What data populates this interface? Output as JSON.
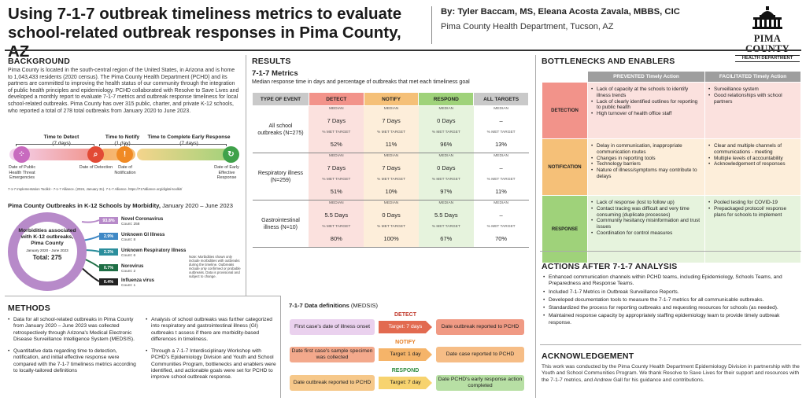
{
  "header": {
    "title": "Using 7-1-7 outbreak timeliness metrics to evaluate school-related outbreak responses in Pima County, AZ",
    "authors": "By: Tyler Baccam, MS, Eleana Acosta Zavala, MBBS, CIC",
    "affiliation": "Pima County Health Department, Tucson, AZ",
    "logo_line1": "PIMA COUNTY",
    "logo_line2": "HEALTH DEPARTMENT"
  },
  "background": {
    "heading": "BACKGROUND",
    "text": "Pima County is located in the south-central region of the United States, in Arizona and is home to 1,043,433 residents (2020 census). The Pima County Health Department (PCHD) and its partners are committed to improving the health status of our community through the integration of public health principles and epidemiology. PCHD collaborated with Resolve to Save Lives and developed a monthly report to evaluate 7-1-7 metrics and outbreak response timeliness for local school-related outbreaks. Pima County has over 315 public, charter, and private K-12 schools, who reported a total of 278 total outbreaks from January 2020 to June 2023."
  },
  "timeline": {
    "detect": "Time to Detect",
    "detect_days": "(7 days)",
    "notify": "Time to Notify",
    "notify_days": "(1 day)",
    "respond": "Time to Complete Early Response",
    "respond_days": "(7 days)",
    "lbl1": "Date of Public Health Threat Emergencies",
    "lbl2": "Date of Detection",
    "lbl3": "Date of Notification",
    "lbl4": "Date of Early Effective Response",
    "source": "7-1-7 Implementation Toolkit - 7-1-7 Alliance. (2024, January 31). 7-1-7 Alliance. https://717alliance.org/digital-toolkit/"
  },
  "morbidity": {
    "heading": "Pima County Outbreaks in K-12 Schools by Morbidity,",
    "period": " January 2020 – June 2023",
    "center_title": "Morbidities associated with K-12 outbreaks, Pima County",
    "center_range": "January 2020 - June 2023",
    "center_total": "Total: 275",
    "note": "Note: Morbidities shown only include morbidities with outbreaks during the timeline. Outbreaks include only confirmed or probable outbreaks. Data is provisional and subject to change.",
    "items": [
      {
        "pct": "93.8%",
        "name": "Novel Coronavirus",
        "count": "Count: 258",
        "color": "#b78ac9"
      },
      {
        "pct": "2.9%",
        "name": "Unknown GI Illness",
        "count": "Count: 8",
        "color": "#3f88c5"
      },
      {
        "pct": "2.2%",
        "name": "Unknown Respiratory Illness",
        "count": "Count: 6",
        "color": "#2b8e9c"
      },
      {
        "pct": "0.7%",
        "name": "Norovirus",
        "count": "Count: 2",
        "color": "#1e6e45"
      },
      {
        "pct": "0.4%",
        "name": "Influenza virus",
        "count": "Count: 1",
        "color": "#222222"
      }
    ]
  },
  "methods": {
    "heading": "METHODS",
    "left": [
      "Data for all school-related outbreaks in Pima County from January 2020 – June 2023 was collected retrospectively through Arizona's Medical Electronic Disease Surveillance Intelligence System (MEDSIS).",
      "Quantitative data regarding time to detection, notification, and initial effective response were compared with the 7-1-7 timeliness metrics according to locally-tailored definitions"
    ],
    "right": [
      "Analysis of school outbreaks was further categorized into respiratory and gastrointestinal illness (GI) outbreaks t assess if there are morbidity-based differences in timeliness.",
      "Through a 7-1-7 Interdisciplinary Workshop with PCHD's Epidemiology Division and Youth and School Communities Program, bottlenecks and enablers were identified, and actionable goals were set for PCHD to improve school outbreak response."
    ]
  },
  "results": {
    "heading": "RESULTS",
    "sub": "7-1-7 Metrics",
    "desc": "Median response time in days and percentage of outbreaks that met each timeliness goal",
    "cols": [
      "TYPE OF EVENT",
      "DETECT",
      "NOTIFY",
      "RESPOND",
      "ALL TARGETS"
    ],
    "median_lbl": "MEDIAN",
    "met_lbl": "% MET TARGET",
    "rows": [
      {
        "event": "All school outbreaks (N=275)",
        "median": [
          "7 Days",
          "7 Days",
          "0 Days",
          "–"
        ],
        "met": [
          "52%",
          "11%",
          "96%",
          "13%"
        ]
      },
      {
        "event": "Respiratory illness (N=259)",
        "median": [
          "7 Days",
          "7 Days",
          "0 Days",
          "–"
        ],
        "met": [
          "51%",
          "10%",
          "97%",
          "11%"
        ]
      },
      {
        "event": "Gastrointestinal illness (N=10)",
        "median": [
          "5.5 Days",
          "0 Days",
          "5.5 Days",
          "–"
        ],
        "met": [
          "80%",
          "100%",
          "67%",
          "70%"
        ]
      }
    ]
  },
  "definitions": {
    "heading": "7-1-7 Data definitions",
    "source": " (MEDSIS)",
    "detect": "DETECT",
    "notify": "NOTIFY",
    "respond": "RESPOND",
    "detect_target": "Target: 7 days",
    "notify_target": "Target: 1 day",
    "respond_target": "Target: 7 day",
    "detect_from": "First case's date of illness onset",
    "detect_to": "Date outbreak reported to PCHD",
    "notify_from": "Date first case's sample specimen was collected",
    "notify_to": "Date case reported to PCHD",
    "respond_from": "Date outbreak reported to PCHD",
    "respond_to": "Date PCHD's early response action completed"
  },
  "bottlenecks": {
    "heading": "BOTTLENECKS AND ENABLERS",
    "col_prevented": "PREVENTED Timely Action",
    "col_facilitated": "FACILITATED Timely Action",
    "rows": [
      {
        "label": "DETECTION",
        "prevented": [
          "Lack of capacity at the schools to identify illness trends",
          "Lack of clearly identified outlines for reporting to public health",
          "High turnover of health office staff"
        ],
        "facilitated": [
          "Surveillance system",
          "Good relationships with school partners"
        ]
      },
      {
        "label": "NOTIFICATION",
        "prevented": [
          "Delay in communication, inappropriate communication routes",
          "Changes in reporting tools",
          "Technology barriers",
          "Nature of illness/symptoms may contribute to delays"
        ],
        "facilitated": [
          "Clear and multiple channels of communications - meeting",
          "Multiple levels of accountability",
          "Acknowledgement of responses"
        ]
      },
      {
        "label": "RESPONSE",
        "prevented": [
          "Lack of response (lost to follow up)",
          "Contact tracing was difficult and very time consuming (duplicate processes)",
          "Community hesitancy misinformation and trust issues",
          "Coordination for control measures"
        ],
        "facilitated": [
          "Pooled testing for COVID-19",
          "Prepackaged protocol/ response plans for schools to implement"
        ]
      }
    ]
  },
  "actions": {
    "heading": "ACTIONS AFTER 7-1-7 ANALYSIS",
    "items": [
      "Enhanced communication channels within PCHD teams, including Epidemiology, Schools Teams, and Preparedness and Response Teams.",
      "Included 7-1-7 Metrics in Outbreak Surveillance Reports.",
      "Developed documentation tools to measure the 7-1-7 metrics for all communicable outbreaks.",
      "Standardized the process for reporting outbreaks and requesting resources for schools (as needed).",
      "Maintained response capacity by appropriately staffing epidemiology team to provide timely outbreak response."
    ]
  },
  "ack": {
    "heading": "ACKNOWLEDGEMENT",
    "text": "This work was conducted by the Pima County Health Department Epidemiology Division in partnership with the Youth and School Communities Program. We thank Resolve to Save Lives for their support and resources with the 7-1-7 metrics, and Andrew Gall for his guidance and contributions."
  }
}
